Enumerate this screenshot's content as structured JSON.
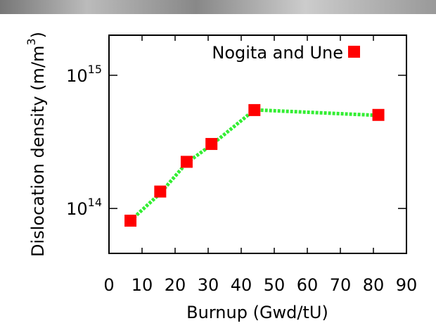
{
  "chart_data": {
    "type": "scatter",
    "x_label": "Burnup (Gwd/tU)",
    "y_label": "Dislocation density (m/m^3)",
    "xlim": [
      0,
      90
    ],
    "xticks": [
      0,
      10,
      20,
      30,
      40,
      50,
      60,
      70,
      80,
      90
    ],
    "ylim": [
      46000000000000.0,
      2000000000000000.0
    ],
    "log_y": true,
    "yticks": [
      {
        "value": 100000000000000.0,
        "label": "10^14"
      },
      {
        "value": 1000000000000000.0,
        "label": "10^15"
      }
    ],
    "legend": "top-right",
    "series": [
      {
        "name": "Nogita and Une",
        "color": "#ff0000",
        "marker": "square",
        "x": [
          6.5,
          15.5,
          23.5,
          31,
          44,
          81.5
        ],
        "values": [
          81000000000000.0,
          134000000000000.0,
          224000000000000.0,
          305000000000000.0,
          548000000000000.0,
          504000000000000.0
        ]
      },
      {
        "color": "#33ee33",
        "line": "dotted",
        "x": [
          6.5,
          15.5,
          23.5,
          31,
          44,
          81.5
        ],
        "values": [
          81000000000000.0,
          130000000000000.0,
          220000000000000.0,
          300000000000000.0,
          550000000000000.0,
          500000000000000.0
        ]
      }
    ]
  }
}
